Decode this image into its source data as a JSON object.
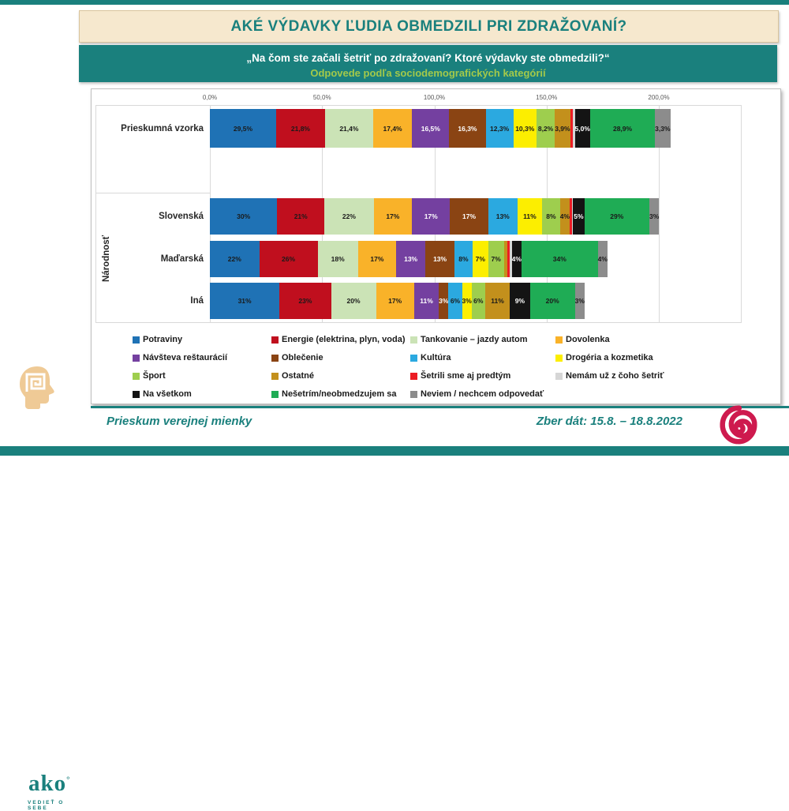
{
  "page": {
    "title": "AKÉ VÝDAVKY ĽUDIA OBMEDZILI PRI ZDRAŽOVANÍ?",
    "subtitle_line1": "„Na čom ste začali šetriť po zdražovaní? Ktoré výdavky ste obmedzili?“",
    "subtitle_line2": "Odpovede podľa sociodemografických kategórií"
  },
  "footer": {
    "left_text": "Prieskum verejnej mienky",
    "right_text": "Zber dát: 15.8. – 18.8.2022",
    "logo_text": "ako",
    "logo_mark": "°",
    "logo_tagline": "VEDIEŤ O SEBE"
  },
  "colors": {
    "accent_teal": "#1A807D",
    "title_bg": "#F6E8CE",
    "subtitle_green": "#A3C94A",
    "footer_red": "#CE1A4E",
    "logo_beige": "#EFCA96"
  },
  "chart_data": {
    "type": "bar",
    "orientation": "horizontal-stacked",
    "title": "AKÉ VÝDAVKY ĽUDIA OBMEDZILI PRI ZDRAŽOVANÍ?",
    "xlabel": "",
    "ylabel": "Národnosť",
    "legend_position": "bottom",
    "grid": true,
    "axis": {
      "ticks": [
        "0,0%",
        "50,0%",
        "100,0%",
        "150,0%",
        "200,0%"
      ],
      "tick_values": [
        0,
        50,
        100,
        150,
        200
      ]
    },
    "series": [
      {
        "name": "Potraviny",
        "color": "#1F72B5",
        "text": "dark"
      },
      {
        "name": "Energie (elektrina, plyn, voda)",
        "color": "#C00F1E",
        "text": "dark"
      },
      {
        "name": "Tankovanie – jazdy autom",
        "color": "#CBE3B6",
        "text": "dark"
      },
      {
        "name": "Dovolenka",
        "color": "#F9B229",
        "text": "dark"
      },
      {
        "name": "Návšteva reštaurácií",
        "color": "#7440A0",
        "text": "light"
      },
      {
        "name": "Oblečenie",
        "color": "#8A4413",
        "text": "light"
      },
      {
        "name": "Kultúra",
        "color": "#2BA9E0",
        "text": "dark"
      },
      {
        "name": "Drogéria a kozmetika",
        "color": "#FCEE00",
        "text": "dark"
      },
      {
        "name": "Šport",
        "color": "#9ECE4E",
        "text": "dark"
      },
      {
        "name": "Ostatné",
        "color": "#C3901C",
        "text": "dark"
      },
      {
        "name": "Šetrili sme aj predtým",
        "color": "#EC1C24",
        "text": "light"
      },
      {
        "name": "Nemám už z čoho šetriť",
        "color": "#D6D6D6",
        "text": "dark"
      },
      {
        "name": "Na všetkom",
        "color": "#141414",
        "text": "light"
      },
      {
        "name": "Nešetrím/neobmedzujem sa",
        "color": "#1FAC55",
        "text": "dark"
      },
      {
        "name": "Neviem / nechcem odpovedať",
        "color": "#8C8C8C",
        "text": "dark"
      }
    ],
    "groups": [
      {
        "label": "",
        "rows": [
          {
            "label": "Prieskumná vzorka",
            "values": [
              29.5,
              21.8,
              21.4,
              17.4,
              16.5,
              16.3,
              12.3,
              10.3,
              8.2,
              3.9,
              1.2,
              0.9,
              5.0,
              28.9,
              3.3
            ],
            "display": [
              "29,5%",
              "21,8%",
              "21,4%",
              "17,4%",
              "16,5%",
              "16,3%",
              "12,3%",
              "10,3%",
              "8,2%",
              "3,9%",
              "",
              "",
              "5,0%",
              "28,9%",
              "3,3%"
            ]
          }
        ]
      },
      {
        "label": "Národnosť",
        "rows": [
          {
            "label": "Slovenská",
            "values": [
              30,
              21,
              22,
              17,
              17,
              17,
              13,
              11,
              8,
              4,
              1,
              0.5,
              5,
              29,
              3
            ],
            "display": [
              "30%",
              "21%",
              "22%",
              "17%",
              "17%",
              "17%",
              "13%",
              "11%",
              "8%",
              "4%",
              "",
              "",
              "5%",
              "29%",
              "3%"
            ]
          },
          {
            "label": "Maďarská",
            "values": [
              22,
              26,
              18,
              17,
              13,
              13,
              8,
              7,
              7,
              1.5,
              1,
              1,
              4,
              34,
              4
            ],
            "display": [
              "22%",
              "26%",
              "18%",
              "17%",
              "13%",
              "13%",
              "8%",
              "7%",
              "7%",
              "",
              "",
              "",
              "4%",
              "34%",
              "4%"
            ]
          },
          {
            "label": "Iná",
            "values": [
              31,
              23,
              20,
              17,
              11,
              3,
              6,
              3,
              6,
              11,
              0,
              0,
              9,
              20,
              3
            ],
            "display": [
              "31%",
              "23%",
              "20%",
              "17%",
              "11%",
              "3%",
              "6%",
              "3%",
              "6%",
              "11%",
              "",
              "",
              "9%",
              "20%",
              "3%"
            ]
          }
        ]
      }
    ]
  }
}
